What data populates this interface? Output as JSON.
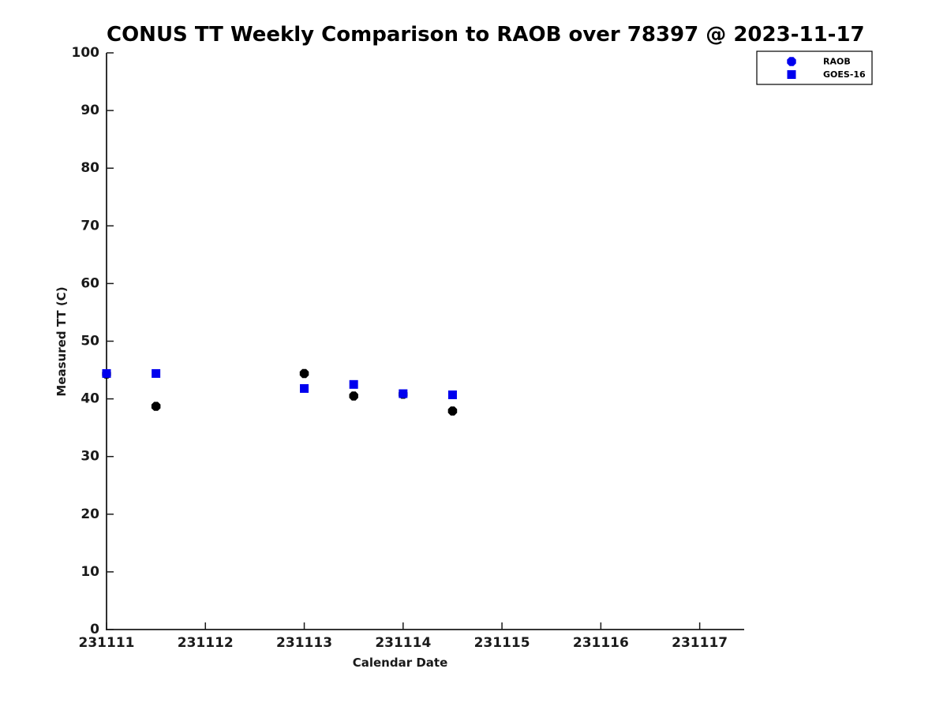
{
  "figure": {
    "background": "#ffffff"
  },
  "chart_data": {
    "type": "scatter",
    "title": "CONUS TT Weekly Comparison to RAOB over 78397 @ 2023-11-17",
    "xlabel": "Calendar Date",
    "ylabel": "Measured TT (C)",
    "xlim": [
      231111,
      231117.45
    ],
    "ylim": [
      0,
      100
    ],
    "xticks": [
      231111,
      231112,
      231113,
      231114,
      231115,
      231116,
      231117
    ],
    "yticks": [
      0,
      10,
      20,
      30,
      40,
      50,
      60,
      70,
      80,
      90,
      100
    ],
    "grid": false,
    "axis_color": "#1a1a1a",
    "marker_blue": "#0000EE",
    "marker_black": "#000000",
    "legend": {
      "position": "top-right",
      "background": "#ffffff",
      "border_color": "#000000",
      "entries": [
        {
          "label": "RAOB",
          "marker": "circle",
          "color": "#0000EE"
        },
        {
          "label": "GOES-16",
          "marker": "square",
          "color": "#0000EE"
        }
      ]
    },
    "series": [
      {
        "name": "RAOB",
        "marker": "circle",
        "color": "#000000",
        "x": [
          231111.0,
          231111.5,
          231113.0,
          231113.5,
          231114.0,
          231114.5
        ],
        "y": [
          44.3,
          38.7,
          44.4,
          40.5,
          40.8,
          37.9
        ]
      },
      {
        "name": "GOES-16",
        "marker": "square",
        "color": "#0000EE",
        "x": [
          231111.0,
          231111.5,
          231113.0,
          231113.5,
          231114.0,
          231114.5
        ],
        "y": [
          44.4,
          44.4,
          41.8,
          42.5,
          40.9,
          40.7
        ]
      }
    ]
  }
}
